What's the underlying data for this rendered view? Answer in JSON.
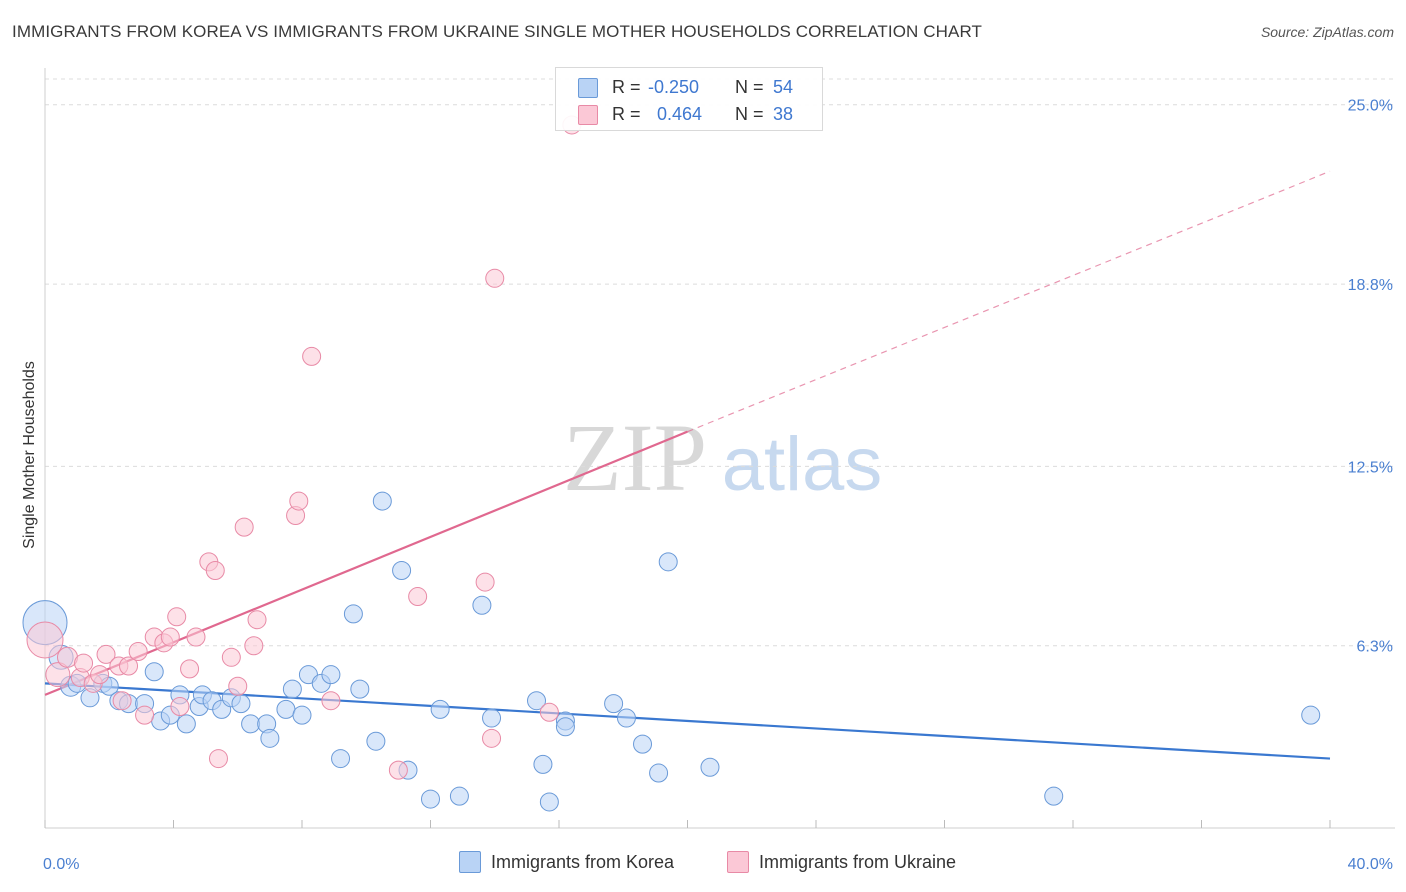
{
  "title": "IMMIGRANTS FROM KOREA VS IMMIGRANTS FROM UKRAINE SINGLE MOTHER HOUSEHOLDS CORRELATION CHART",
  "source": "Source: ZipAtlas.com",
  "watermark": {
    "zip": "ZIP",
    "atlas": "atlas"
  },
  "stats": {
    "rows": [
      {
        "r_label": "R =",
        "r_value": "-0.250",
        "n_label": "N =",
        "n_value": "54",
        "color": "#6a9ad8"
      },
      {
        "r_label": "R =",
        "r_value": "0.464",
        "n_label": "N =",
        "n_value": "38",
        "color": "#e88aa6"
      }
    ]
  },
  "legend": {
    "korea": "Immigrants from Korea",
    "ukraine": "Immigrants from Ukraine"
  },
  "chart_data": {
    "type": "scatter",
    "title": "IMMIGRANTS FROM KOREA VS IMMIGRANTS FROM UKRAINE SINGLE MOTHER HOUSEHOLDS CORRELATION CHART",
    "xlabel": "",
    "ylabel": "Single Mother Households",
    "xlim": [
      0,
      40
    ],
    "ylim": [
      0,
      26.2
    ],
    "x_tick_labels": [
      "0.0%",
      "40.0%"
    ],
    "y_ticks": [
      6.3,
      12.5,
      18.8,
      25.0
    ],
    "y_tick_labels": [
      "6.3%",
      "12.5%",
      "18.8%",
      "25.0%"
    ],
    "grid": true,
    "legend_position": "bottom-center",
    "series": [
      {
        "name": "Immigrants from Korea",
        "color": "#6a9ad8",
        "fill": "#b9d3f5",
        "points": [
          [
            0.0,
            7.1,
            22
          ],
          [
            0.5,
            5.9,
            12
          ],
          [
            0.8,
            4.9,
            10
          ],
          [
            1.0,
            5.0,
            9
          ],
          [
            1.4,
            4.5,
            9
          ],
          [
            1.8,
            5.0,
            9
          ],
          [
            2.0,
            4.9,
            9
          ],
          [
            2.3,
            4.4,
            9
          ],
          [
            2.6,
            4.3,
            9
          ],
          [
            3.1,
            4.3,
            9
          ],
          [
            3.4,
            5.4,
            9
          ],
          [
            3.6,
            3.7,
            9
          ],
          [
            3.9,
            3.9,
            9
          ],
          [
            4.2,
            4.6,
            9
          ],
          [
            4.4,
            3.6,
            9
          ],
          [
            4.8,
            4.2,
            9
          ],
          [
            4.9,
            4.6,
            9
          ],
          [
            5.2,
            4.4,
            9
          ],
          [
            5.5,
            4.1,
            9
          ],
          [
            5.8,
            4.5,
            9
          ],
          [
            6.1,
            4.3,
            9
          ],
          [
            6.4,
            3.6,
            9
          ],
          [
            6.9,
            3.6,
            9
          ],
          [
            7.0,
            3.1,
            9
          ],
          [
            7.5,
            4.1,
            9
          ],
          [
            7.7,
            4.8,
            9
          ],
          [
            8.0,
            3.9,
            9
          ],
          [
            8.2,
            5.3,
            9
          ],
          [
            8.6,
            5.0,
            9
          ],
          [
            8.9,
            5.3,
            9
          ],
          [
            9.2,
            2.4,
            9
          ],
          [
            9.6,
            7.4,
            9
          ],
          [
            9.8,
            4.8,
            9
          ],
          [
            10.3,
            3.0,
            9
          ],
          [
            10.5,
            11.3,
            9
          ],
          [
            11.1,
            8.9,
            9
          ],
          [
            11.3,
            2.0,
            9
          ],
          [
            12.0,
            1.0,
            9
          ],
          [
            12.3,
            4.1,
            9
          ],
          [
            12.9,
            1.1,
            9
          ],
          [
            13.6,
            7.7,
            9
          ],
          [
            13.9,
            3.8,
            9
          ],
          [
            15.3,
            4.4,
            9
          ],
          [
            15.5,
            2.2,
            9
          ],
          [
            15.7,
            0.9,
            9
          ],
          [
            16.2,
            3.7,
            9
          ],
          [
            16.2,
            3.5,
            9
          ],
          [
            17.7,
            4.3,
            9
          ],
          [
            18.1,
            3.8,
            9
          ],
          [
            18.6,
            2.9,
            9
          ],
          [
            19.1,
            1.9,
            9
          ],
          [
            19.4,
            9.2,
            9
          ],
          [
            20.7,
            2.1,
            9
          ],
          [
            31.4,
            1.1,
            9
          ],
          [
            39.4,
            3.9,
            9
          ]
        ],
        "trend": {
          "x0": 0,
          "y0": 5.0,
          "x1": 40,
          "y1": 2.4,
          "style": "solid"
        }
      },
      {
        "name": "Immigrants from Ukraine",
        "color": "#e88aa6",
        "fill": "#fbc8d6",
        "points": [
          [
            0.0,
            6.5,
            18
          ],
          [
            0.4,
            5.3,
            12
          ],
          [
            0.7,
            5.9,
            10
          ],
          [
            1.1,
            5.2,
            9
          ],
          [
            1.2,
            5.7,
            9
          ],
          [
            1.5,
            5.0,
            9
          ],
          [
            1.7,
            5.3,
            9
          ],
          [
            1.9,
            6.0,
            9
          ],
          [
            2.3,
            5.6,
            9
          ],
          [
            2.4,
            4.4,
            9
          ],
          [
            2.6,
            5.6,
            9
          ],
          [
            2.9,
            6.1,
            9
          ],
          [
            3.1,
            3.9,
            9
          ],
          [
            3.4,
            6.6,
            9
          ],
          [
            3.7,
            6.4,
            9
          ],
          [
            3.9,
            6.6,
            9
          ],
          [
            4.1,
            7.3,
            9
          ],
          [
            4.2,
            4.2,
            9
          ],
          [
            4.5,
            5.5,
            9
          ],
          [
            4.7,
            6.6,
            9
          ],
          [
            5.1,
            9.2,
            9
          ],
          [
            5.3,
            8.9,
            9
          ],
          [
            5.4,
            2.4,
            9
          ],
          [
            5.8,
            5.9,
            9
          ],
          [
            6.0,
            4.9,
            9
          ],
          [
            6.2,
            10.4,
            9
          ],
          [
            6.5,
            6.3,
            9
          ],
          [
            6.6,
            7.2,
            9
          ],
          [
            7.8,
            10.8,
            9
          ],
          [
            7.9,
            11.3,
            9
          ],
          [
            8.3,
            16.3,
            9
          ],
          [
            8.9,
            4.4,
            9
          ],
          [
            11.0,
            2.0,
            9
          ],
          [
            11.6,
            8.0,
            9
          ],
          [
            13.7,
            8.5,
            9
          ],
          [
            13.9,
            3.1,
            9
          ],
          [
            14.0,
            19.0,
            9
          ],
          [
            15.7,
            4.0,
            9
          ],
          [
            16.4,
            24.3,
            9
          ]
        ],
        "trend": {
          "x0": 0,
          "y0": 4.6,
          "x1": 20,
          "y1": 13.7,
          "style": "solid",
          "extension": {
            "x1": 40,
            "y1": 22.7,
            "style": "dashed"
          }
        }
      }
    ]
  }
}
